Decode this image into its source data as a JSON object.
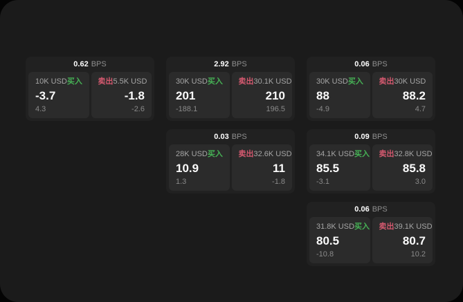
{
  "labels": {
    "bps": "BPS",
    "buy": "买入",
    "sell": "卖出"
  },
  "colors": {
    "page_bg": "#1b1b1b",
    "card_bg": "#212121",
    "panel_bg": "#2b2b2b",
    "buy_green": "#46b155",
    "sell_red": "#d4596f"
  },
  "cards": [
    {
      "row": 1,
      "col": 1,
      "bps": "0.62",
      "buy": {
        "amount": "10K USD",
        "value": "-3.7",
        "sub": "4.3"
      },
      "sell": {
        "amount": "5.5K USD",
        "value": "-1.8",
        "sub": "-2.6"
      }
    },
    {
      "row": 1,
      "col": 2,
      "bps": "2.92",
      "buy": {
        "amount": "30K USD",
        "value": "201",
        "sub": "-188.1"
      },
      "sell": {
        "amount": "30.1K USD",
        "value": "210",
        "sub": "196.5"
      }
    },
    {
      "row": 1,
      "col": 3,
      "bps": "0.06",
      "buy": {
        "amount": "30K USD",
        "value": "88",
        "sub": "-4.9"
      },
      "sell": {
        "amount": "30K USD",
        "value": "88.2",
        "sub": "4.7"
      }
    },
    {
      "row": 2,
      "col": 2,
      "bps": "0.03",
      "buy": {
        "amount": "28K USD",
        "value": "10.9",
        "sub": "1.3"
      },
      "sell": {
        "amount": "32.6K USD",
        "value": "11",
        "sub": "-1.8"
      }
    },
    {
      "row": 2,
      "col": 3,
      "bps": "0.09",
      "buy": {
        "amount": "34.1K USD",
        "value": "85.5",
        "sub": "-3.1"
      },
      "sell": {
        "amount": "32.8K USD",
        "value": "85.8",
        "sub": "3.0"
      }
    },
    {
      "row": 3,
      "col": 3,
      "bps": "0.06",
      "buy": {
        "amount": "31.8K USD",
        "value": "80.5",
        "sub": "-10.8"
      },
      "sell": {
        "amount": "39.1K USD",
        "value": "80.7",
        "sub": "10.2"
      }
    }
  ]
}
